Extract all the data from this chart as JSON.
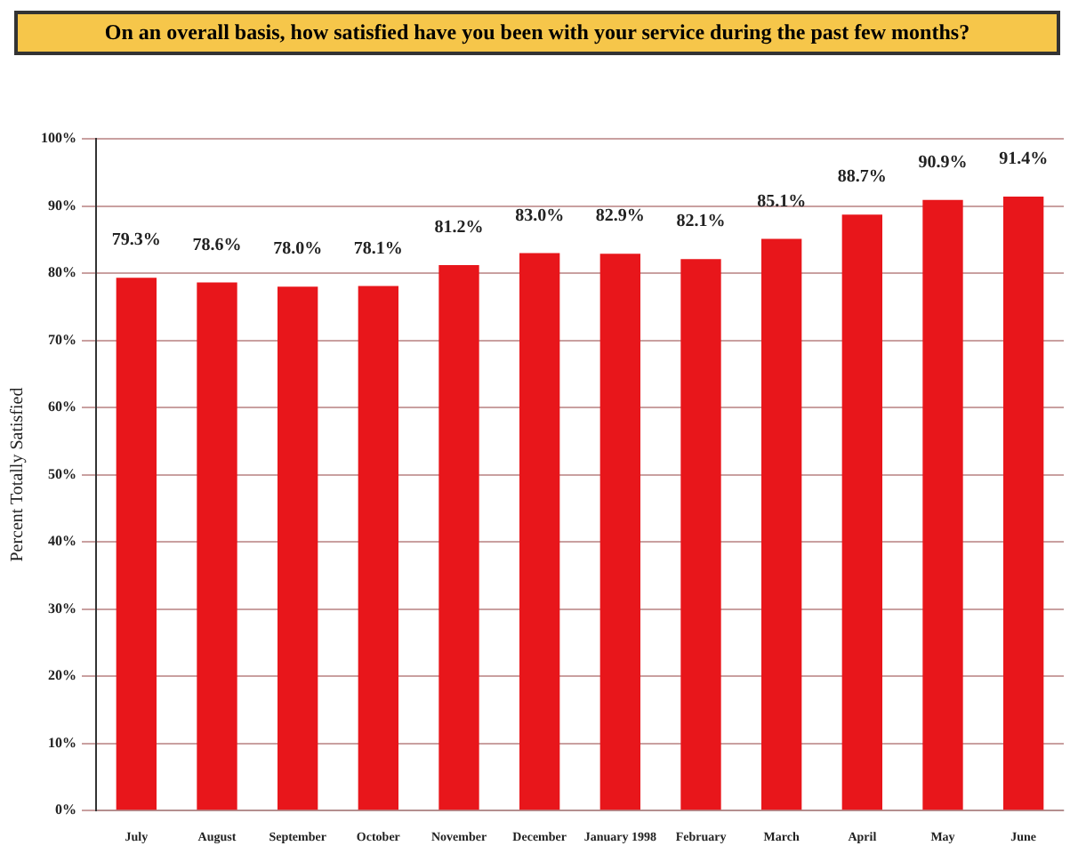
{
  "chart_data": {
    "type": "bar",
    "title": "On an overall basis, how satisfied have you been with your service during the past few months?",
    "ylabel": "Percent Totally Satisfied",
    "categories": [
      "July",
      "August",
      "September",
      "October",
      "November",
      "December",
      "January 1998",
      "February",
      "March",
      "April",
      "May",
      "June"
    ],
    "values": [
      79.3,
      78.6,
      78.0,
      78.1,
      81.2,
      83.0,
      82.9,
      82.1,
      85.1,
      88.7,
      90.9,
      91.4
    ],
    "value_labels": [
      "79.3%",
      "78.6%",
      "78.0%",
      "78.1%",
      "81.2%",
      "83.0%",
      "82.9%",
      "82.1%",
      "85.1%",
      "88.7%",
      "90.9%",
      "91.4%"
    ],
    "color": "#e8161b",
    "ylim": [
      0,
      100
    ],
    "yticks": [
      {
        "value": 0,
        "label": "0%"
      },
      {
        "value": 10,
        "label": "10%"
      },
      {
        "value": 20,
        "label": "20%"
      },
      {
        "value": 30,
        "label": "30%"
      },
      {
        "value": 40,
        "label": "40%"
      },
      {
        "value": 50,
        "label": "50%"
      },
      {
        "value": 60,
        "label": "60%"
      },
      {
        "value": 70,
        "label": "70%"
      },
      {
        "value": 80,
        "label": "80%"
      },
      {
        "value": 90,
        "label": "90%"
      },
      {
        "value": 100,
        "label": "100%"
      }
    ],
    "grid": "y",
    "legend": false
  }
}
